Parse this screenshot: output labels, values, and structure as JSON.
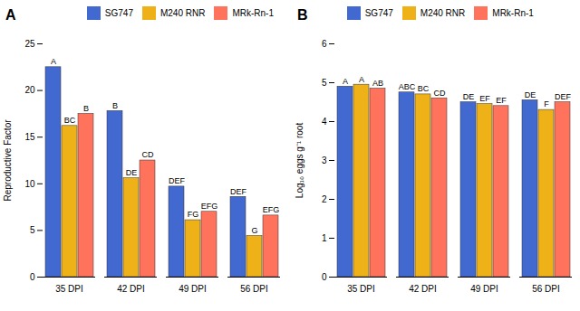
{
  "chart_data": [
    {
      "type": "bar",
      "title": "A",
      "categories": [
        "35 DPI",
        "42 DPI",
        "49 DPI",
        "56 DPI"
      ],
      "ylabel": "Reproductive Factor",
      "ylim": [
        0,
        25
      ],
      "yticks": [
        0,
        5,
        10,
        15,
        20,
        25
      ],
      "grid": false,
      "legend": "upper right",
      "series": [
        {
          "name": "SG747",
          "values": [
            22.5,
            17.8,
            9.7,
            8.6
          ],
          "labels": [
            "A",
            "B",
            "DEF",
            "DEF"
          ]
        },
        {
          "name": "M240 RNR",
          "values": [
            16.2,
            10.6,
            6.1,
            4.4
          ],
          "labels": [
            "BC",
            "DE",
            "FG",
            "G"
          ]
        },
        {
          "name": "MRk-Rn-1",
          "values": [
            17.5,
            12.5,
            7.0,
            6.6
          ],
          "labels": [
            "B",
            "CD",
            "EFG",
            "EFG"
          ]
        }
      ]
    },
    {
      "type": "bar",
      "title": "B",
      "categories": [
        "35 DPI",
        "42 DPI",
        "49 DPI",
        "56 DPI"
      ],
      "ylabel": "Log₁₀ eggs g⁻¹ root",
      "ylim": [
        0,
        6
      ],
      "yticks": [
        0,
        1,
        2,
        3,
        4,
        5,
        6
      ],
      "grid": false,
      "legend": "upper center",
      "series": [
        {
          "name": "SG747",
          "values": [
            4.9,
            4.75,
            4.5,
            4.55
          ],
          "labels": [
            "A",
            "ABC",
            "DE",
            "DE"
          ]
        },
        {
          "name": "M240 RNR",
          "values": [
            4.95,
            4.7,
            4.45,
            4.3
          ],
          "labels": [
            "A",
            "BC",
            "EF",
            "F"
          ]
        },
        {
          "name": "MRk-Rn-1",
          "values": [
            4.85,
            4.6,
            4.4,
            4.5
          ],
          "labels": [
            "AB",
            "CD",
            "EF",
            "DEF"
          ]
        }
      ]
    }
  ]
}
